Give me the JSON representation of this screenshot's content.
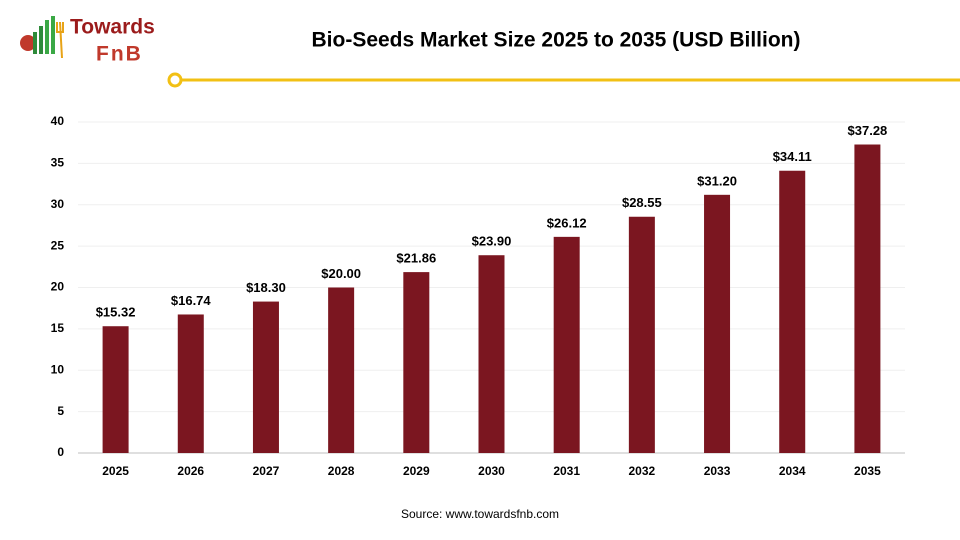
{
  "logo": {
    "line1": "Towards",
    "line2": "FnB"
  },
  "chart_data": {
    "type": "bar",
    "title": "Bio-Seeds Market Size 2025 to 2035 (USD Billion)",
    "categories": [
      "2025",
      "2026",
      "2027",
      "2028",
      "2029",
      "2030",
      "2031",
      "2032",
      "2033",
      "2034",
      "2035"
    ],
    "values": [
      15.32,
      16.74,
      18.3,
      20.0,
      21.86,
      23.9,
      26.12,
      28.55,
      31.2,
      34.11,
      37.28
    ],
    "value_labels": [
      "$15.32",
      "$16.74",
      "$18.30",
      "$20.00",
      "$21.86",
      "$23.90",
      "$26.12",
      "$28.55",
      "$31.20",
      "$34.11",
      "$37.28"
    ],
    "color": "#7b1620",
    "ylim": [
      0,
      40
    ],
    "yticks": [
      0,
      5,
      10,
      15,
      20,
      25,
      30,
      35,
      40
    ],
    "grid": true,
    "source": "Source: www.towardsfnb.com"
  }
}
